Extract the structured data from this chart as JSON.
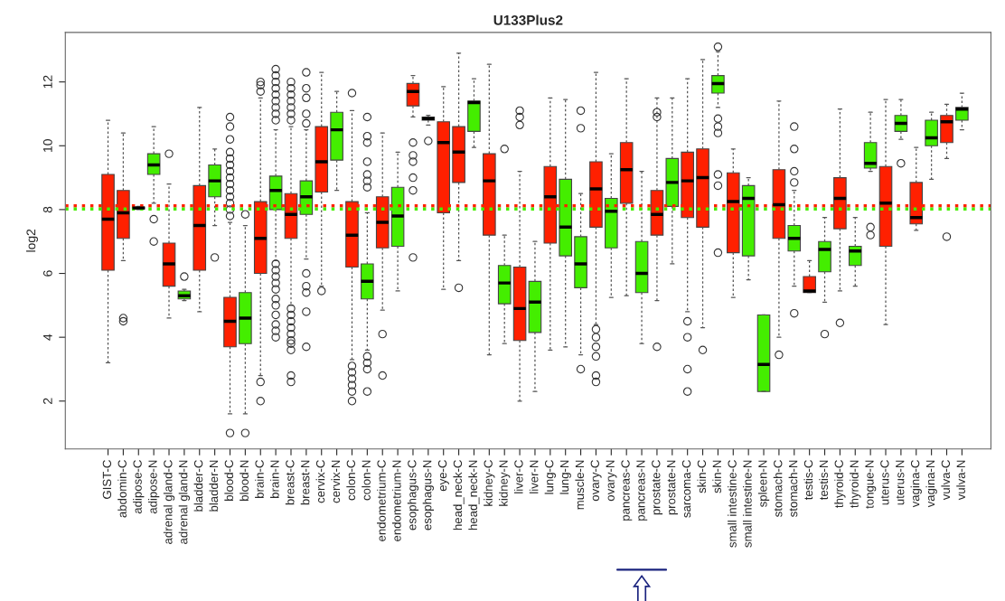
{
  "chart_data": {
    "type": "box",
    "title": "U133Plus2",
    "ylabel": "log2",
    "categories": [
      "GIST-C",
      "abdomin-C",
      "adipose-C",
      "adipose-N",
      "adrenal gland-C",
      "adrenal gland-N",
      "bladder-C",
      "bladder-N",
      "blood-C",
      "blood-N",
      "brain-C",
      "brain-N",
      "breast-C",
      "breast-N",
      "cervix-C",
      "cervix-N",
      "colon-C",
      "colon-N",
      "endometrium-C",
      "endometrium-N",
      "esophagus-C",
      "esophagus-N",
      "eye-C",
      "head_neck-C",
      "head_neck-N",
      "kidney-C",
      "kidney-N",
      "liver-C",
      "liver-N",
      "lung-C",
      "lung-N",
      "muscle-N",
      "ovary-C",
      "ovary-N",
      "pancreas-C",
      "pancreas-N",
      "prostate-C",
      "prostate-N",
      "sarcoma-C",
      "skin-C",
      "skin-N",
      "small intestine-C",
      "small intestine-N",
      "spleen-N",
      "stomach-C",
      "stomach-N",
      "testis-C",
      "testis-N",
      "thyroid-C",
      "thyroid-N",
      "tongue-N",
      "uterus-C",
      "uterus-N",
      "vagina-C",
      "vagina-N",
      "vulva-C",
      "vulva-N"
    ],
    "colors": [
      "#ff2000",
      "#ff2000",
      "#ff2000",
      "#44ee00",
      "#ff2000",
      "#44ee00",
      "#ff2000",
      "#44ee00",
      "#ff2000",
      "#44ee00",
      "#ff2000",
      "#44ee00",
      "#ff2000",
      "#44ee00",
      "#ff2000",
      "#44ee00",
      "#ff2000",
      "#44ee00",
      "#ff2000",
      "#44ee00",
      "#ff2000",
      "#44ee00",
      "#ff2000",
      "#ff2000",
      "#44ee00",
      "#ff2000",
      "#44ee00",
      "#ff2000",
      "#44ee00",
      "#ff2000",
      "#44ee00",
      "#44ee00",
      "#ff2000",
      "#44ee00",
      "#ff2000",
      "#44ee00",
      "#ff2000",
      "#44ee00",
      "#ff2000",
      "#ff2000",
      "#44ee00",
      "#ff2000",
      "#44ee00",
      "#44ee00",
      "#ff2000",
      "#44ee00",
      "#ff2000",
      "#44ee00",
      "#ff2000",
      "#44ee00",
      "#44ee00",
      "#ff2000",
      "#44ee00",
      "#ff2000",
      "#44ee00",
      "#ff2000",
      "#44ee00"
    ],
    "boxes": [
      {
        "low": 3.2,
        "q1": 6.1,
        "median": 7.7,
        "q3": 9.1,
        "high": 10.8
      },
      {
        "low": 6.4,
        "q1": 7.1,
        "median": 7.9,
        "q3": 8.6,
        "high": 10.4,
        "outliers": [
          4.6,
          4.5
        ]
      },
      {
        "low": 8.0,
        "q1": 8.02,
        "median": 8.05,
        "q3": 8.08,
        "high": 8.1
      },
      {
        "low": 8.2,
        "q1": 9.1,
        "median": 9.4,
        "q3": 9.75,
        "high": 10.6,
        "outliers": [
          7.7,
          7.0
        ]
      },
      {
        "low": 4.6,
        "q1": 5.6,
        "median": 6.3,
        "q3": 6.95,
        "high": 8.8,
        "outliers": [
          9.75
        ]
      },
      {
        "low": 5.15,
        "q1": 5.2,
        "median": 5.3,
        "q3": 5.45,
        "high": 5.5,
        "outliers": [
          5.9
        ]
      },
      {
        "low": 4.8,
        "q1": 6.1,
        "median": 7.5,
        "q3": 8.75,
        "high": 11.2
      },
      {
        "low": 7.5,
        "q1": 8.4,
        "median": 8.9,
        "q3": 9.4,
        "high": 9.9,
        "outliers": [
          6.5
        ]
      },
      {
        "low": 1.6,
        "q1": 3.7,
        "median": 4.5,
        "q3": 5.25,
        "high": 7.6,
        "outliers": [
          1.0,
          7.8,
          8.0,
          8.2,
          8.4,
          8.6,
          8.8,
          9.0,
          9.2,
          9.4,
          9.6,
          9.8,
          10.2,
          10.6,
          10.9
        ]
      },
      {
        "low": 1.6,
        "q1": 3.8,
        "median": 4.6,
        "q3": 5.4,
        "high": 7.5,
        "outliers": [
          1.0,
          7.85
        ]
      },
      {
        "low": 2.8,
        "q1": 6.0,
        "median": 7.1,
        "q3": 8.25,
        "high": 11.5,
        "outliers": [
          2.6,
          2.0,
          11.7,
          11.9,
          12.0
        ]
      },
      {
        "low": 6.4,
        "q1": 8.0,
        "median": 8.6,
        "q3": 9.05,
        "high": 10.5,
        "outliers": [
          4.0,
          4.2,
          4.4,
          4.7,
          5.0,
          5.2,
          5.5,
          5.7,
          5.9,
          6.1,
          6.3,
          10.8,
          11.0,
          11.2,
          11.4,
          11.6,
          11.8,
          12.0,
          12.2,
          12.4
        ]
      },
      {
        "low": 5.0,
        "q1": 7.1,
        "median": 7.85,
        "q3": 8.5,
        "high": 10.6,
        "outliers": [
          2.6,
          2.8,
          3.6,
          3.8,
          3.9,
          4.1,
          4.3,
          4.5,
          4.7,
          4.9,
          10.8,
          11.0,
          11.2,
          11.4,
          11.6,
          11.8,
          12.0
        ]
      },
      {
        "low": 6.45,
        "q1": 7.85,
        "median": 8.4,
        "q3": 8.9,
        "high": 10.5,
        "outliers": [
          3.7,
          4.8,
          5.4,
          5.6,
          6.0,
          10.7,
          11.0,
          11.5,
          11.8,
          12.3
        ]
      },
      {
        "low": 5.6,
        "q1": 8.55,
        "median": 9.5,
        "q3": 10.6,
        "high": 12.3,
        "outliers": [
          5.45
        ]
      },
      {
        "low": 8.6,
        "q1": 9.55,
        "median": 10.5,
        "q3": 11.05,
        "high": 11.7
      },
      {
        "low": 3.3,
        "q1": 6.2,
        "median": 7.2,
        "q3": 8.25,
        "high": 11.1,
        "outliers": [
          2.0,
          2.3,
          2.5,
          2.7,
          2.9,
          3.1,
          11.65
        ]
      },
      {
        "low": 3.6,
        "q1": 5.2,
        "median": 5.75,
        "q3": 6.3,
        "high": 7.9,
        "outliers": [
          2.3,
          3.0,
          3.2,
          3.4,
          8.7,
          8.9,
          9.1,
          9.5,
          10.1,
          10.3,
          10.9
        ]
      },
      {
        "low": 4.85,
        "q1": 6.8,
        "median": 7.6,
        "q3": 8.4,
        "high": 10.4,
        "outliers": [
          4.1,
          2.8
        ]
      },
      {
        "low": 5.45,
        "q1": 6.85,
        "median": 7.8,
        "q3": 8.7,
        "high": 9.8
      },
      {
        "low": 10.9,
        "q1": 11.25,
        "median": 11.7,
        "q3": 11.95,
        "high": 12.2,
        "outliers": [
          10.1,
          9.7,
          9.5,
          9.0,
          8.6,
          6.5
        ]
      },
      {
        "low": 10.65,
        "q1": 10.8,
        "median": 10.85,
        "q3": 10.9,
        "high": 10.95,
        "outliers": [
          10.15
        ]
      },
      {
        "low": 5.5,
        "q1": 7.9,
        "median": 10.1,
        "q3": 10.75,
        "high": 11.85
      },
      {
        "low": 6.4,
        "q1": 8.85,
        "median": 9.8,
        "q3": 10.6,
        "high": 12.9,
        "outliers": [
          5.55
        ]
      },
      {
        "low": 9.95,
        "q1": 10.45,
        "median": 11.35,
        "q3": 11.4,
        "high": 12.1
      },
      {
        "low": 3.45,
        "q1": 7.2,
        "median": 8.9,
        "q3": 9.75,
        "high": 12.55
      },
      {
        "low": 3.8,
        "q1": 5.05,
        "median": 5.7,
        "q3": 6.25,
        "high": 7.2,
        "outliers": [
          9.9
        ]
      },
      {
        "low": 2.0,
        "q1": 3.9,
        "median": 4.9,
        "q3": 6.2,
        "high": 9.2,
        "outliers": [
          10.65,
          10.9,
          11.1
        ]
      },
      {
        "low": 2.3,
        "q1": 4.15,
        "median": 5.1,
        "q3": 5.75,
        "high": 7.0
      },
      {
        "low": 3.6,
        "q1": 6.95,
        "median": 8.4,
        "q3": 9.35,
        "high": 11.5
      },
      {
        "low": 3.7,
        "q1": 6.55,
        "median": 7.45,
        "q3": 8.95,
        "high": 11.45
      },
      {
        "low": 3.45,
        "q1": 5.55,
        "median": 6.3,
        "q3": 7.15,
        "high": 8.5,
        "outliers": [
          3.0,
          10.55,
          11.1
        ]
      },
      {
        "low": 4.4,
        "q1": 7.45,
        "median": 8.65,
        "q3": 9.5,
        "high": 12.3,
        "outliers": [
          2.6,
          2.8,
          3.4,
          3.7,
          4.0,
          4.25
        ]
      },
      {
        "low": 5.25,
        "q1": 6.8,
        "median": 7.95,
        "q3": 8.35,
        "high": 9.75
      },
      {
        "low": 5.3,
        "q1": 8.2,
        "median": 9.25,
        "q3": 10.1,
        "high": 12.1
      },
      {
        "low": 3.8,
        "q1": 5.4,
        "median": 6.0,
        "q3": 7.0,
        "high": 9.2
      },
      {
        "low": 5.15,
        "q1": 7.2,
        "median": 7.85,
        "q3": 8.6,
        "high": 11.5,
        "outliers": [
          3.7,
          10.9,
          11.05
        ]
      },
      {
        "low": 6.3,
        "q1": 8.1,
        "median": 8.85,
        "q3": 9.6,
        "high": 11.5
      },
      {
        "low": 4.8,
        "q1": 7.75,
        "median": 8.9,
        "q3": 9.8,
        "high": 12.1,
        "outliers": [
          2.3,
          3.0,
          4.0,
          4.5
        ]
      },
      {
        "low": 4.3,
        "q1": 7.45,
        "median": 9.0,
        "q3": 9.9,
        "high": 12.7,
        "outliers": [
          3.6
        ]
      },
      {
        "low": 11.2,
        "q1": 11.65,
        "median": 11.95,
        "q3": 12.2,
        "high": 12.95,
        "outliers": [
          6.65,
          8.75,
          9.1,
          10.4,
          10.6,
          10.85,
          13.1
        ]
      },
      {
        "low": 5.25,
        "q1": 6.65,
        "median": 8.25,
        "q3": 9.15,
        "high": 9.9
      },
      {
        "low": 5.8,
        "q1": 6.55,
        "median": 8.35,
        "q3": 8.75,
        "high": 9.0
      },
      {
        "low": 2.3,
        "q1": 2.3,
        "median": 3.15,
        "q3": 4.7,
        "high": 4.7
      },
      {
        "low": 4.0,
        "q1": 7.1,
        "median": 8.15,
        "q3": 9.25,
        "high": 11.4,
        "outliers": [
          3.45
        ]
      },
      {
        "low": 5.6,
        "q1": 6.7,
        "median": 7.1,
        "q3": 7.5,
        "high": 8.6,
        "outliers": [
          4.75,
          8.85,
          9.2,
          9.9,
          10.6
        ]
      },
      {
        "low": 5.4,
        "q1": 5.4,
        "median": 5.45,
        "q3": 5.9,
        "high": 6.4
      },
      {
        "low": 5.1,
        "q1": 6.05,
        "median": 6.75,
        "q3": 7.0,
        "high": 7.75,
        "outliers": [
          4.1
        ]
      },
      {
        "low": 5.45,
        "q1": 7.4,
        "median": 8.35,
        "q3": 9.0,
        "high": 11.15,
        "outliers": [
          4.45
        ]
      },
      {
        "low": 5.6,
        "q1": 6.25,
        "median": 6.7,
        "q3": 6.85,
        "high": 7.75
      },
      {
        "low": 9.2,
        "q1": 9.3,
        "median": 9.45,
        "q3": 10.1,
        "high": 11.05,
        "outliers": [
          7.2,
          7.45
        ]
      },
      {
        "low": 4.4,
        "q1": 6.85,
        "median": 8.2,
        "q3": 9.35,
        "high": 11.45
      },
      {
        "low": 10.2,
        "q1": 10.45,
        "median": 10.7,
        "q3": 10.95,
        "high": 11.45,
        "outliers": [
          9.45
        ]
      },
      {
        "low": 7.35,
        "q1": 7.55,
        "median": 7.75,
        "q3": 8.85,
        "high": 9.95
      },
      {
        "low": 8.95,
        "q1": 10.0,
        "median": 10.25,
        "q3": 10.8,
        "high": 11.05
      },
      {
        "low": 9.6,
        "q1": 10.1,
        "median": 10.75,
        "q3": 10.95,
        "high": 11.3,
        "outliers": [
          7.15
        ]
      },
      {
        "low": 10.5,
        "q1": 10.8,
        "median": 11.15,
        "q3": 11.2,
        "high": 11.65
      }
    ],
    "ref_lines": [
      {
        "axis": "y",
        "value": 8.12,
        "color": "#ff2000",
        "line_style": "dotted"
      },
      {
        "axis": "y",
        "value": 8.02,
        "color": "#44ee00",
        "line_style": "dotted"
      }
    ],
    "ylim": [
      0.5,
      13.55
    ],
    "yticks": [
      2,
      4,
      6,
      8,
      10,
      12
    ],
    "grid": false,
    "legend": false
  }
}
